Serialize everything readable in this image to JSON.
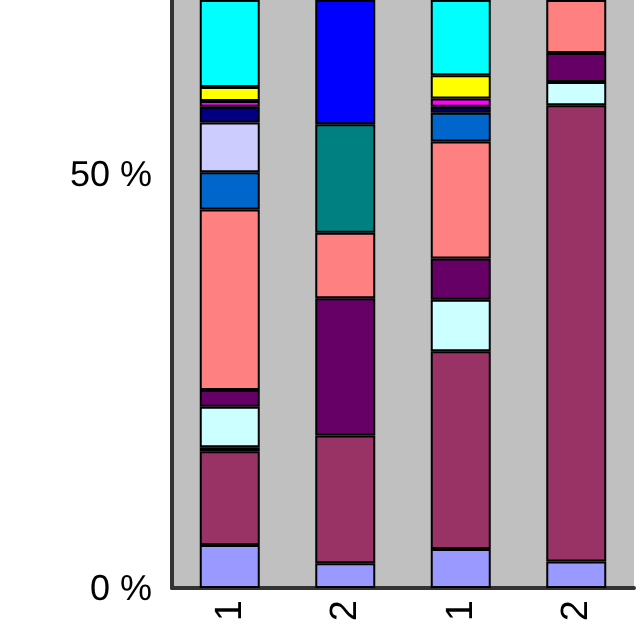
{
  "chart_data": {
    "type": "bar",
    "stacked": true,
    "categories": [
      "1",
      "2",
      "1",
      "2"
    ],
    "ylim": [
      0,
      71
    ],
    "yticks": [
      {
        "value": 0,
        "label": "0 %"
      },
      {
        "value": 50,
        "label": "50 %"
      }
    ],
    "grid": false,
    "series": [
      {
        "color": "#9999ff",
        "values": [
          5.2,
          3.0,
          4.7,
          3.2
        ]
      },
      {
        "color": "#993366",
        "values": [
          11.3,
          15.4,
          23.9,
          55.1
        ]
      },
      {
        "color": "#ffffcc",
        "values": [
          0.5,
          null,
          null,
          null
        ]
      },
      {
        "color": "#ccffff",
        "values": [
          4.9,
          null,
          6.2,
          2.8
        ]
      },
      {
        "color": "#660066",
        "values": [
          2,
          16.6,
          5,
          3.5
        ]
      },
      {
        "color": "#ff8080",
        "values": [
          21.8,
          7.9,
          14.1,
          6.4
        ]
      },
      {
        "color": "#0066cc",
        "values": [
          4.5,
          null,
          3.5,
          null
        ]
      },
      {
        "color": "#ccccff",
        "values": [
          6,
          null,
          null,
          null
        ]
      },
      {
        "color": "#000080",
        "values": [
          1.9,
          null,
          0.7,
          null
        ]
      },
      {
        "color": "#ff00ff",
        "values": [
          0.7,
          null,
          1.0,
          null
        ]
      },
      {
        "color": "#ffff00",
        "values": [
          1.7,
          null,
          2.8,
          null
        ]
      },
      {
        "color": "#00ffff",
        "values": [
          10.5,
          null,
          9.1,
          null
        ]
      },
      {
        "color": "#008080",
        "values": [
          null,
          13.1,
          null,
          null
        ]
      },
      {
        "color": "#0000ff",
        "values": [
          null,
          15,
          null,
          null
        ]
      }
    ]
  }
}
